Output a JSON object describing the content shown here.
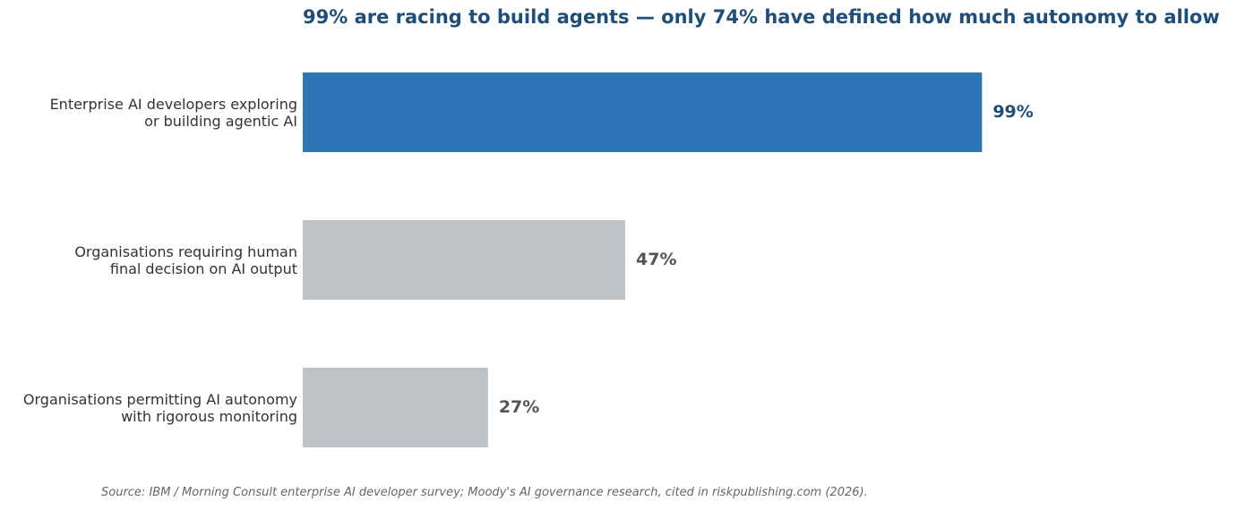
{
  "chart_data": {
    "type": "barh",
    "title": "99% are racing to build agents — only 74% have defined how much autonomy to allow",
    "categories": [
      "Enterprise AI developers exploring\nor building agentic AI",
      "Organisations requiring human\nfinal decision on AI output",
      "Organisations permitting AI autonomy\nwith rigorous monitoring"
    ],
    "values": [
      99,
      47,
      27
    ],
    "value_labels": [
      "99%",
      "47%",
      "27%"
    ],
    "colors": [
      "#2e75b6",
      "#bdc3c7",
      "#bdc3c7"
    ],
    "label_colors": [
      "#1f4e79",
      "#555555",
      "#555555"
    ],
    "xlim": [
      0,
      100
    ],
    "source": "Source: IBM / Morning Consult enterprise AI developer survey; Moody's AI governance research, cited in riskpublishing.com (2026)."
  }
}
